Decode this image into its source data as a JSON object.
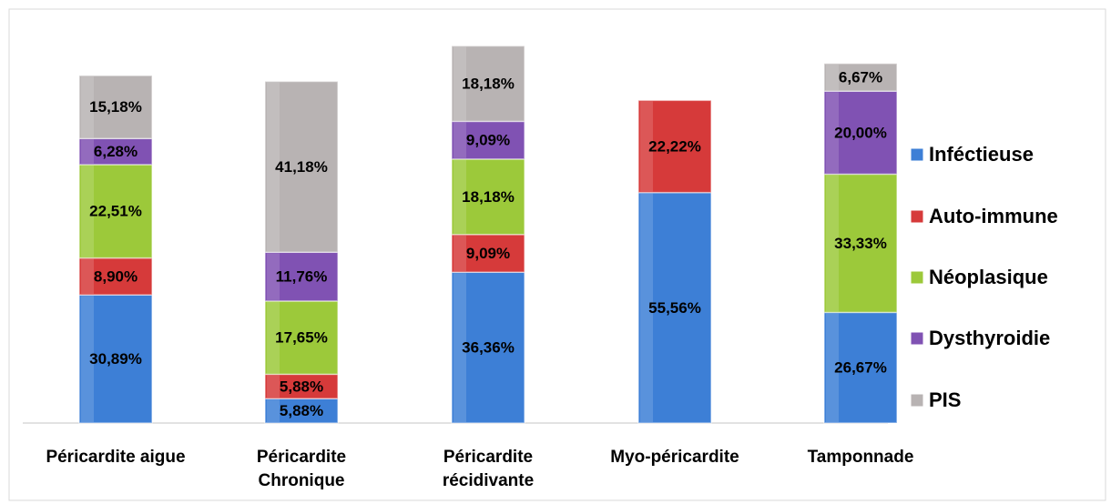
{
  "chart_data": {
    "type": "stacked_bar",
    "categories": [
      "Péricardite aigue",
      "Péricardite Chronique",
      "Péricardite récidivante",
      "Myo-péricardite",
      "Tamponnade"
    ],
    "series": [
      {
        "name": "Inféctieuse",
        "color": "#3d7fd6",
        "values": [
          30.89,
          5.88,
          36.36,
          55.56,
          26.67
        ],
        "value_labels": [
          "30,89%",
          "5,88%",
          "36,36%",
          "55,56%",
          "26,67%"
        ]
      },
      {
        "name": "Auto-immune",
        "color": "#d63a3a",
        "values": [
          8.9,
          5.88,
          9.09,
          22.22,
          null
        ],
        "value_labels": [
          "8,90%",
          "5,88%",
          "9,09%",
          "22,22%",
          null
        ]
      },
      {
        "name": "Néoplasique",
        "color": "#9cc93a",
        "values": [
          22.51,
          17.65,
          18.18,
          null,
          33.33
        ],
        "value_labels": [
          "22,51%",
          "17,65%",
          "18,18%",
          null,
          "33,33%"
        ]
      },
      {
        "name": "Dysthyroidie",
        "color": "#8052b3",
        "values": [
          6.28,
          11.76,
          9.09,
          null,
          20.0
        ],
        "value_labels": [
          "6,28%",
          "11,76%",
          "9,09%",
          null,
          "20,00%"
        ]
      },
      {
        "name": "PIS",
        "color": "#b8b3b3",
        "values": [
          15.18,
          41.18,
          18.18,
          null,
          6.67
        ],
        "value_labels": [
          "15,18%",
          "41,18%",
          "18,18%",
          null,
          "6,67%"
        ]
      }
    ],
    "legend": "right"
  }
}
